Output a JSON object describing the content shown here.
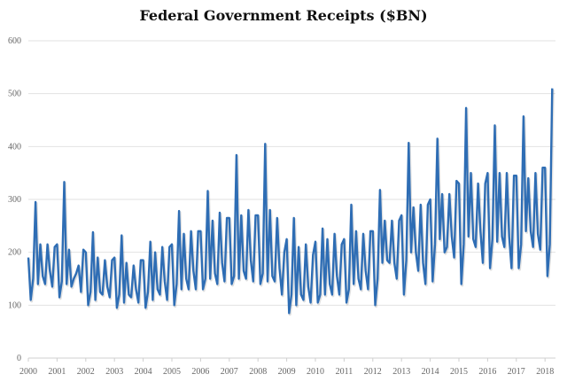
{
  "chart_data": {
    "type": "line",
    "title": "Federal Government Receipts ($BN)",
    "xlabel": "",
    "ylabel": "",
    "ylim": [
      0,
      600
    ],
    "yticks": [
      "0",
      "100",
      "200",
      "300",
      "400",
      "500",
      "600"
    ],
    "xticks": [
      "2000",
      "2001",
      "2002",
      "2003",
      "2004",
      "2005",
      "2006",
      "2007",
      "2008",
      "2009",
      "2010",
      "2011",
      "2012",
      "2013",
      "2014",
      "2015",
      "2016",
      "2017",
      "2018"
    ],
    "grid": true,
    "frequency": "monthly",
    "start": "2000-01",
    "end": "2018-04",
    "series": [
      {
        "name": "Federal Government Receipts",
        "color": "#2e6db4",
        "values": [
          190,
          110,
          150,
          295,
          140,
          215,
          155,
          140,
          215,
          165,
          135,
          210,
          215,
          115,
          145,
          333,
          140,
          205,
          135,
          150,
          160,
          175,
          125,
          205,
          200,
          100,
          125,
          238,
          110,
          190,
          125,
          120,
          185,
          135,
          115,
          185,
          190,
          95,
          120,
          232,
          105,
          180,
          120,
          115,
          175,
          130,
          105,
          185,
          185,
          95,
          125,
          220,
          110,
          200,
          130,
          120,
          210,
          145,
          110,
          210,
          215,
          100,
          140,
          278,
          130,
          235,
          150,
          130,
          240,
          165,
          130,
          240,
          240,
          130,
          150,
          316,
          150,
          260,
          160,
          140,
          275,
          180,
          145,
          265,
          265,
          140,
          155,
          384,
          150,
          270,
          165,
          150,
          280,
          185,
          145,
          270,
          270,
          140,
          160,
          405,
          145,
          280,
          155,
          145,
          265,
          170,
          120,
          200,
          225,
          85,
          120,
          265,
          100,
          210,
          120,
          110,
          215,
          135,
          105,
          195,
          220,
          105,
          120,
          245,
          120,
          225,
          140,
          120,
          235,
          155,
          120,
          215,
          225,
          105,
          130,
          290,
          140,
          240,
          150,
          130,
          235,
          165,
          130,
          240,
          240,
          100,
          150,
          318,
          180,
          260,
          185,
          180,
          260,
          180,
          150,
          260,
          270,
          120,
          185,
          407,
          200,
          285,
          200,
          165,
          290,
          180,
          140,
          290,
          300,
          145,
          215,
          415,
          225,
          310,
          200,
          210,
          310,
          230,
          190,
          335,
          330,
          140,
          215,
          473,
          230,
          350,
          225,
          210,
          330,
          240,
          180,
          330,
          350,
          170,
          225,
          440,
          220,
          350,
          230,
          210,
          350,
          230,
          170,
          345,
          345,
          170,
          215,
          457,
          240,
          340,
          240,
          210,
          350,
          235,
          205,
          360,
          360,
          155,
          215,
          510
        ]
      }
    ]
  }
}
